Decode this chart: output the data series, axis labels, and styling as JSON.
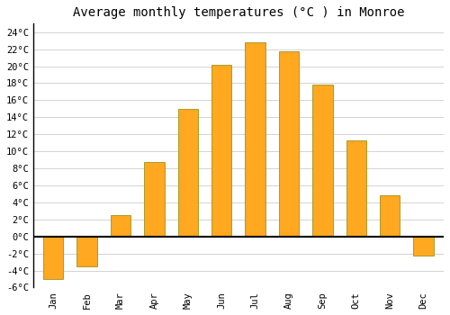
{
  "title": "Average monthly temperatures (°C ) in Monroe",
  "months": [
    "Jan",
    "Feb",
    "Mar",
    "Apr",
    "May",
    "Jun",
    "Jul",
    "Aug",
    "Sep",
    "Oct",
    "Nov",
    "Dec"
  ],
  "values": [
    -5.0,
    -3.5,
    2.5,
    8.7,
    15.0,
    20.2,
    22.8,
    21.7,
    17.8,
    11.3,
    4.8,
    -2.2
  ],
  "bar_color": "#FFA820",
  "bar_edge_color": "#888800",
  "ylim": [
    -6,
    25
  ],
  "yticks": [
    -6,
    -4,
    -2,
    0,
    2,
    4,
    6,
    8,
    10,
    12,
    14,
    16,
    18,
    20,
    22,
    24
  ],
  "ytick_labels": [
    "-6°C",
    "-4°C",
    "-2°C",
    "0°C",
    "2°C",
    "4°C",
    "6°C",
    "8°C",
    "10°C",
    "12°C",
    "14°C",
    "16°C",
    "18°C",
    "20°C",
    "22°C",
    "24°C"
  ],
  "grid_color": "#cccccc",
  "background_color": "#ffffff",
  "title_fontsize": 10,
  "tick_fontsize": 7.5,
  "font_family": "monospace",
  "bar_width": 0.6
}
